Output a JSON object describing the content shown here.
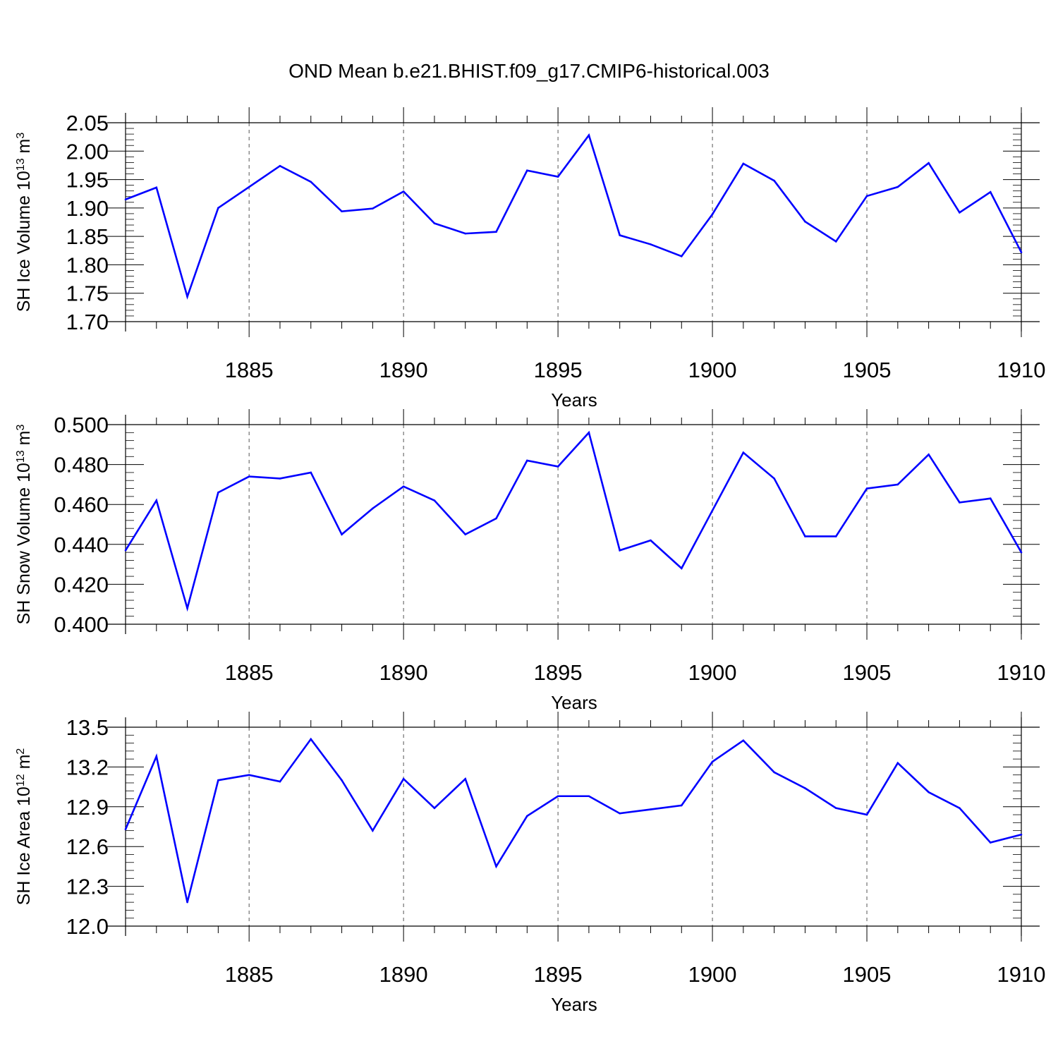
{
  "title": "OND Mean b.e21.BHIST.f09_g17.CMIP6-historical.003",
  "colors": {
    "line": "#0000ff",
    "axis": "#000000",
    "grid": "#555555"
  },
  "chart_data": [
    {
      "type": "line",
      "id": "ice_volume",
      "ylabel": {
        "main": "SH Ice Volume 10",
        "exp": "13",
        "unit": " m",
        "unit_exp": "3"
      },
      "xlabel": "Years",
      "xlim": [
        1881,
        1910
      ],
      "ylim": [
        1.7,
        2.05
      ],
      "yticks": [
        "1.70",
        "1.75",
        "1.80",
        "1.85",
        "1.90",
        "1.95",
        "2.00",
        "2.05"
      ],
      "xticks": [
        "1885",
        "1890",
        "1895",
        "1900",
        "1905",
        "1910"
      ],
      "x": [
        1881,
        1882,
        1883,
        1884,
        1885,
        1886,
        1887,
        1888,
        1889,
        1890,
        1891,
        1892,
        1893,
        1894,
        1895,
        1896,
        1897,
        1898,
        1899,
        1900,
        1901,
        1902,
        1903,
        1904,
        1905,
        1906,
        1907,
        1908,
        1909,
        1910
      ],
      "values": [
        1.915,
        1.936,
        1.744,
        1.9,
        1.937,
        1.974,
        1.946,
        1.894,
        1.899,
        1.929,
        1.873,
        1.855,
        1.858,
        1.966,
        1.955,
        2.028,
        1.852,
        1.836,
        1.815,
        1.889,
        1.978,
        1.948,
        1.876,
        1.841,
        1.921,
        1.937,
        1.979,
        1.892,
        1.928,
        1.822
      ]
    },
    {
      "type": "line",
      "id": "snow_volume",
      "ylabel": {
        "main": "SH Snow Volume 10",
        "exp": "13",
        "unit": " m",
        "unit_exp": "3"
      },
      "xlabel": "Years",
      "xlim": [
        1881,
        1910
      ],
      "ylim": [
        0.4,
        0.5
      ],
      "yticks": [
        "0.400",
        "0.420",
        "0.440",
        "0.460",
        "0.480",
        "0.500"
      ],
      "xticks": [
        "1885",
        "1890",
        "1895",
        "1900",
        "1905",
        "1910"
      ],
      "x": [
        1881,
        1882,
        1883,
        1884,
        1885,
        1886,
        1887,
        1888,
        1889,
        1890,
        1891,
        1892,
        1893,
        1894,
        1895,
        1896,
        1897,
        1898,
        1899,
        1900,
        1901,
        1902,
        1903,
        1904,
        1905,
        1906,
        1907,
        1908,
        1909,
        1910
      ],
      "values": [
        0.437,
        0.462,
        0.408,
        0.466,
        0.474,
        0.473,
        0.476,
        0.445,
        0.458,
        0.469,
        0.462,
        0.445,
        0.453,
        0.482,
        0.479,
        0.496,
        0.437,
        0.442,
        0.428,
        0.457,
        0.486,
        0.473,
        0.444,
        0.444,
        0.468,
        0.47,
        0.485,
        0.461,
        0.463,
        0.436
      ]
    },
    {
      "type": "line",
      "id": "ice_area",
      "ylabel": {
        "main": "SH Ice Area 10",
        "exp": "12",
        "unit": " m",
        "unit_exp": "2"
      },
      "xlabel": "Years",
      "xlim": [
        1881,
        1910
      ],
      "ylim": [
        12.0,
        13.5
      ],
      "yticks": [
        "12.0",
        "12.3",
        "12.6",
        "12.9",
        "13.2",
        "13.5"
      ],
      "xticks": [
        "1885",
        "1890",
        "1895",
        "1900",
        "1905",
        "1910"
      ],
      "x": [
        1881,
        1882,
        1883,
        1884,
        1885,
        1886,
        1887,
        1888,
        1889,
        1890,
        1891,
        1892,
        1893,
        1894,
        1895,
        1896,
        1897,
        1898,
        1899,
        1900,
        1901,
        1902,
        1903,
        1904,
        1905,
        1906,
        1907,
        1908,
        1909,
        1910
      ],
      "values": [
        12.73,
        13.28,
        12.18,
        13.1,
        13.14,
        13.09,
        13.41,
        13.1,
        12.72,
        13.11,
        12.89,
        13.11,
        12.45,
        12.83,
        12.98,
        12.98,
        12.85,
        12.88,
        12.91,
        13.24,
        13.4,
        13.16,
        13.04,
        12.89,
        12.84,
        13.23,
        13.01,
        12.89,
        12.63,
        12.69
      ]
    }
  ]
}
